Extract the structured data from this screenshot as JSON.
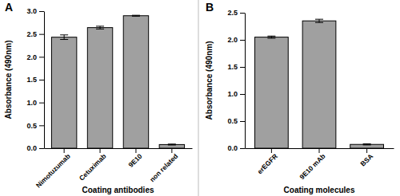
{
  "chart_data": [
    {
      "type": "bar",
      "title": "A",
      "x_label": "Coating antibodies",
      "y_label": "Absorbance (490nm)",
      "categories": [
        "Nimotuzumab",
        "Cetuximab",
        "9E10",
        "non related"
      ],
      "values": [
        2.43,
        2.64,
        2.9,
        0.08
      ],
      "errors": [
        0.05,
        0.03,
        0.01,
        0.01
      ],
      "color": "#a0a0a0",
      "ylim": [
        0,
        3
      ],
      "yticks": [
        {
          "value": 0,
          "label": "0.0"
        },
        0.5,
        {
          "value": 1,
          "label": "1.0"
        },
        1.5,
        {
          "value": 2,
          "label": "2.0"
        },
        2.5,
        {
          "value": 3,
          "label": "3.0"
        }
      ]
    },
    {
      "type": "bar",
      "title": "B",
      "x_label": "Coating molecules",
      "y_label": "Absorbance (490nm)",
      "categories": [
        "erEGFR",
        "9E10 mAb",
        "BSA"
      ],
      "values": [
        2.05,
        2.35,
        0.07
      ],
      "errors": [
        0.02,
        0.03,
        0.01
      ],
      "color": "#a0a0a0",
      "ylim": [
        0,
        2.5
      ],
      "yticks": [
        {
          "value": 0,
          "label": "0.0"
        },
        0.5,
        {
          "value": 1,
          "label": "1.0"
        },
        1.5,
        {
          "value": 2,
          "label": "2.0"
        },
        2.5
      ]
    }
  ]
}
